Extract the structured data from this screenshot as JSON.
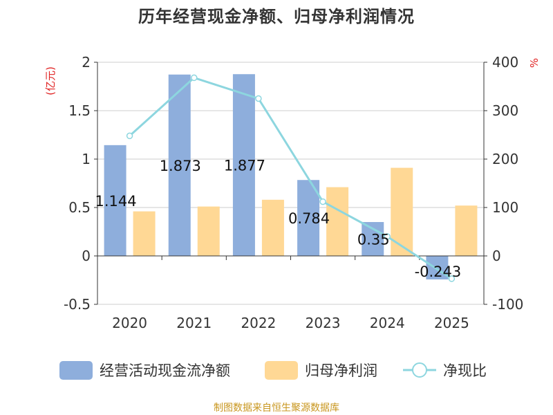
{
  "chart_title": "历年经营现金净额、归母净利润情况",
  "footer_source": "制图数据来自恒生聚源数据库",
  "chart_data": {
    "type": "bar",
    "title": "历年经营现金净额、归母净利润情况",
    "categories": [
      "2020",
      "2021",
      "2022",
      "2023",
      "2024",
      "2025"
    ],
    "series": [
      {
        "name": "经营活动现金流净额",
        "type": "bar",
        "axis": "left",
        "color": "#8eaedc",
        "values": [
          1.144,
          1.873,
          1.877,
          0.784,
          0.35,
          -0.243
        ],
        "labels": [
          "1.144",
          "1.873",
          "1.877",
          "0.784",
          "0.35",
          "-0.243"
        ]
      },
      {
        "name": "归母净利润",
        "type": "bar",
        "axis": "left",
        "color": "#ffd895",
        "values": [
          0.46,
          0.51,
          0.58,
          0.71,
          0.91,
          0.52
        ]
      },
      {
        "name": "净现比",
        "type": "line",
        "axis": "right",
        "color": "#8dd6df",
        "values": [
          248,
          368,
          325,
          112,
          40,
          -47
        ]
      }
    ],
    "y_left": {
      "label": "(亿元)",
      "min": -0.5,
      "max": 2,
      "ticks": [
        2,
        1.5,
        1,
        0.5,
        0,
        -0.5
      ],
      "tick_labels": [
        "2",
        "1.5",
        "1",
        "0.5",
        "0",
        "-0.5"
      ]
    },
    "y_right": {
      "label": "%",
      "min": -100,
      "max": 400,
      "ticks": [
        400,
        300,
        200,
        100,
        0,
        -100
      ],
      "tick_labels": [
        "400",
        "300",
        "200",
        "100",
        "0",
        "-100"
      ]
    },
    "grid": true,
    "legend_position": "bottom"
  }
}
